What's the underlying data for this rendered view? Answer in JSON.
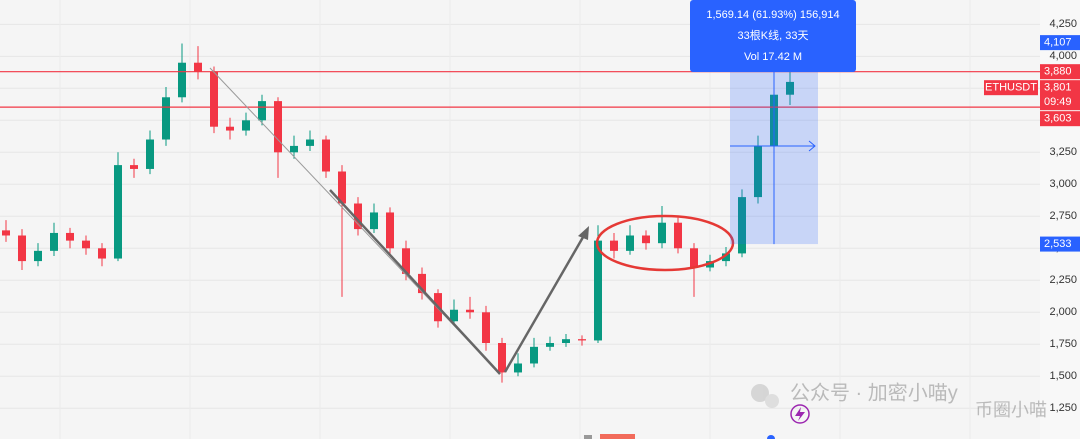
{
  "chart_data": {
    "type": "candlestick",
    "series": [
      {
        "name": "ETHUSDT",
        "up_color": "#089981",
        "down_color": "#f23645",
        "open": [
          2640,
          2600,
          2400,
          2480,
          2620,
          2560,
          2500,
          2420,
          3150,
          3120,
          3350,
          3680,
          3950,
          3880,
          3450,
          3420,
          3500,
          3650,
          3250,
          3300,
          3350,
          3100,
          2850,
          2650,
          2780,
          2500,
          2300,
          2150,
          1930,
          2020,
          2000,
          1760,
          1530,
          1600,
          1730,
          1760,
          1790,
          1780,
          2560,
          2480,
          2600,
          2540,
          2700,
          2500,
          2350,
          2400,
          2460,
          2900,
          3300,
          3700
        ],
        "high": [
          2720,
          2650,
          2540,
          2700,
          2660,
          2600,
          2540,
          3250,
          3200,
          3420,
          3760,
          4100,
          4080,
          3920,
          3520,
          3560,
          3700,
          3680,
          3380,
          3420,
          3380,
          3150,
          2900,
          2850,
          2820,
          2560,
          2350,
          2180,
          2100,
          2120,
          2050,
          1800,
          1680,
          1800,
          1810,
          1830,
          1820,
          2680,
          2620,
          2680,
          2640,
          2830,
          2740,
          2540,
          2450,
          2510,
          2960,
          3380,
          3820,
          3880
        ],
        "low": [
          2550,
          2330,
          2360,
          2440,
          2500,
          2450,
          2360,
          2400,
          3050,
          3080,
          3300,
          3640,
          3820,
          3400,
          3350,
          3380,
          3460,
          3050,
          3200,
          3260,
          3050,
          2120,
          2600,
          2620,
          2450,
          2250,
          2100,
          1880,
          1900,
          1950,
          1700,
          1450,
          1500,
          1570,
          1700,
          1730,
          1740,
          1760,
          2420,
          2450,
          2490,
          2500,
          2460,
          2120,
          2320,
          2360,
          2430,
          2850,
          3260,
          3620
        ],
        "close": [
          2600,
          2400,
          2480,
          2620,
          2560,
          2500,
          2420,
          3150,
          3120,
          3350,
          3680,
          3950,
          3880,
          3450,
          3420,
          3500,
          3650,
          3250,
          3300,
          3350,
          3100,
          2850,
          2650,
          2780,
          2500,
          2300,
          2150,
          1930,
          2020,
          2000,
          1760,
          1530,
          1600,
          1730,
          1760,
          1790,
          1780,
          2560,
          2480,
          2600,
          2540,
          2700,
          2500,
          2350,
          2400,
          2460,
          2900,
          3300,
          3700,
          3800
        ]
      }
    ],
    "ylim": [
      1010,
      4440
    ],
    "yticks": [
      {
        "value": 4250,
        "label": "4,250"
      },
      {
        "value": 4000,
        "label": "4,000"
      },
      {
        "value": 3750,
        "label": "3,750"
      },
      {
        "value": 3500,
        "label": "3,500"
      },
      {
        "value": 3250,
        "label": "3,250"
      },
      {
        "value": 3000,
        "label": "3,000"
      },
      {
        "value": 2750,
        "label": "2,750"
      },
      {
        "value": 2500,
        "label": "2,500"
      },
      {
        "value": 2250,
        "label": "2,250"
      },
      {
        "value": 2000,
        "label": "2,000"
      },
      {
        "value": 1750,
        "label": "1,750"
      },
      {
        "value": 1500,
        "label": "1,500"
      },
      {
        "value": 1250,
        "label": "1,250"
      }
    ],
    "grid": true,
    "hlines": [
      {
        "value": 3880,
        "color": "#f23645"
      },
      {
        "value": 3603,
        "color": "#f23645"
      }
    ],
    "price_labels": [
      {
        "value": 4107,
        "label": "4,107",
        "color": "#2962ff"
      },
      {
        "value": 3880,
        "label": "3,880",
        "color": "#f23645"
      },
      {
        "value": 3801,
        "label": "3,801",
        "color": "#f23645",
        "symbol": "ETHUSDT",
        "countdown": "09:49"
      },
      {
        "value": 3603,
        "label": "3,603",
        "color": "#f23645"
      },
      {
        "value": 2533,
        "label": "2,533",
        "color": "#2962ff"
      }
    ],
    "tooltip": [
      "1,569.14 (61.93%) 156,914",
      "33根K线, 33天",
      "Vol 17.42 M"
    ],
    "watermark": [
      "公众号 · 加密小喵y",
      "币圈小喵"
    ]
  }
}
